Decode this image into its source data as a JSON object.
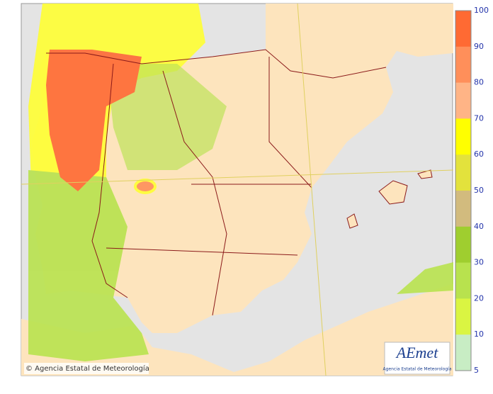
{
  "legend": {
    "labels": [
      100,
      90,
      80,
      70,
      60,
      50,
      40,
      30,
      20,
      10,
      5
    ],
    "colors": [
      "#ff6a33",
      "#ff8f5a",
      "#ffb486",
      "#ffff00",
      "#e3e23c",
      "#d2bb7e",
      "#9fce2f",
      "#b8e24e",
      "#daf542",
      "#c8edc4"
    ]
  },
  "copyright": "© Agencia Estatal de Meteorología",
  "logo": {
    "name": "AEmet",
    "subtitle": "Agencia Estatal de Meteorología"
  }
}
